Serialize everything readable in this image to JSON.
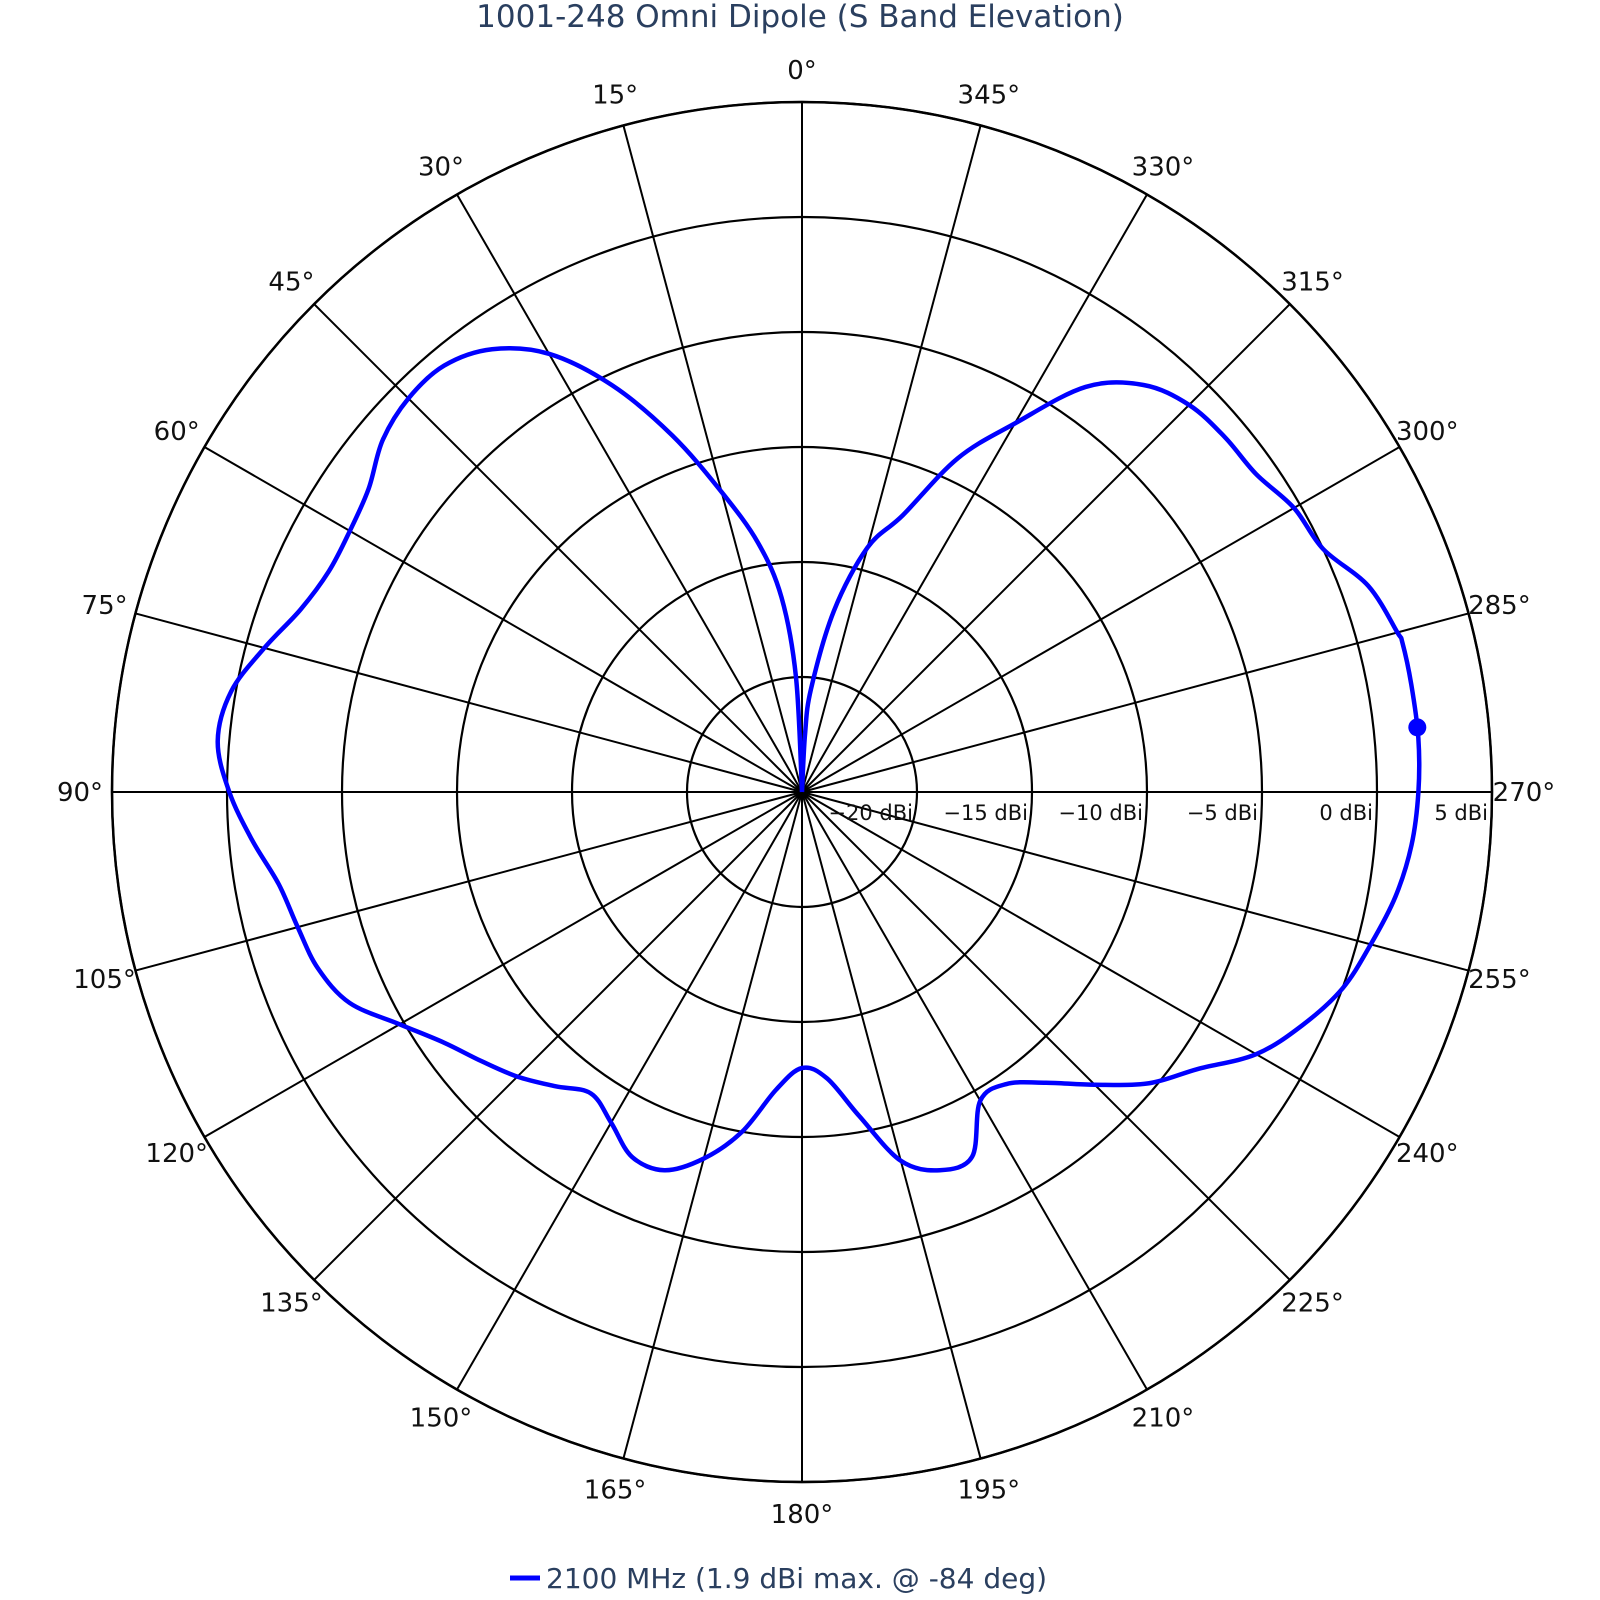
{
  "chart_data": {
    "type": "polar-line",
    "title": "1001-248 Omni Dipole (S Band Elevation)",
    "angular_axis": {
      "direction": "counterclockwise",
      "rotation": "0° at top",
      "tick_step_deg": 15,
      "tick_labels": [
        "0°",
        "15°",
        "30°",
        "45°",
        "60°",
        "75°",
        "90°",
        "105°",
        "120°",
        "135°",
        "150°",
        "165°",
        "180°",
        "195°",
        "210°",
        "225°",
        "240°",
        "255°",
        "270°",
        "285°",
        "300°",
        "315°",
        "330°",
        "345°"
      ]
    },
    "radial_axis": {
      "range": [
        -25,
        5
      ],
      "tick_values": [
        -20,
        -15,
        -10,
        -5,
        0,
        5
      ],
      "tick_labels": [
        "−20 dBi",
        "−15 dBi",
        "−10 dBi",
        "−5 dBi",
        "0 dBi",
        "5 dBi"
      ],
      "tick_angle_deg": 270
    },
    "grid": true,
    "series": [
      {
        "name": "2100 MHz (1.9 dBi max. @ -84 deg)",
        "color": "#0000ff",
        "theta": [
          0,
          3,
          6,
          10,
          15,
          20,
          25,
          30,
          35,
          40,
          45,
          50,
          55,
          60,
          65,
          70,
          75,
          80,
          85,
          90,
          95,
          100,
          105,
          110,
          115,
          120,
          125,
          130,
          135,
          140,
          145,
          150,
          155,
          160,
          165,
          170,
          175,
          180,
          185,
          190,
          195,
          200,
          205,
          210,
          215,
          220,
          225,
          230,
          235,
          240,
          245,
          250,
          255,
          260,
          265,
          270,
          275,
          280,
          284,
          285,
          290,
          295,
          300,
          305,
          310,
          315,
          320,
          325,
          330,
          335,
          340,
          345,
          350,
          355,
          357,
          360
        ],
        "r": [
          -25,
          -20,
          -16.5,
          -14,
          -11.5,
          -8.5,
          -5.5,
          -3,
          -1.5,
          -0.8,
          -0.8,
          -1.2,
          -2,
          -2.3,
          -2.3,
          -1.8,
          -0.8,
          0.2,
          0.5,
          -0.1,
          -1,
          -1.9,
          -2.3,
          -2.6,
          -3.3,
          -4.8,
          -6,
          -6.8,
          -7.5,
          -8.3,
          -9,
          -8.4,
          -7.5,
          -7.5,
          -8.5,
          -10,
          -12,
          -13,
          -12.5,
          -10.7,
          -8.4,
          -7.5,
          -7.5,
          -9.5,
          -9.5,
          -8.5,
          -7,
          -5.3,
          -4,
          -2.2,
          -1,
          0,
          0.6,
          1.2,
          1.6,
          1.8,
          1.9,
          1.9,
          1.9,
          1.8,
          1.2,
          0,
          -0.3,
          -0.9,
          -1,
          -1.2,
          -1.9,
          -3.5,
          -6.5,
          -9,
          -12.2,
          -14,
          -17,
          -20.5,
          -22.5,
          -25
        ],
        "max_marker": {
          "theta": 276,
          "r": 1.9
        }
      }
    ],
    "legend": {
      "position": "bottom-center"
    }
  }
}
